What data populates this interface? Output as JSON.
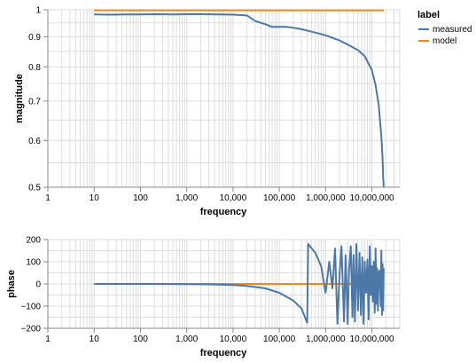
{
  "colors": {
    "measured": "#4c78a8",
    "model": "#f58518",
    "grid": "#dddddd",
    "axis": "#888888"
  },
  "legend": {
    "title": "label",
    "placement": "top-right",
    "entries": [
      "measured",
      "model"
    ]
  },
  "chart_data": [
    {
      "type": "line",
      "xlabel": "frequency",
      "ylabel": "magnitude",
      "xscale": "log",
      "yscale": "log",
      "xlim": [
        1,
        40000000
      ],
      "ylim": [
        0.5,
        1
      ],
      "x_ticks": [
        1,
        10,
        100,
        1000,
        10000,
        100000,
        1000000,
        10000000
      ],
      "x_tick_labels": [
        "1",
        "10",
        "100",
        "1,000",
        "10,000",
        "100,000",
        "1,000,000",
        "10,000,000"
      ],
      "y_ticks": [
        0.5,
        0.6,
        0.7,
        0.8,
        0.9,
        1
      ],
      "y_tick_labels": [
        "0.5",
        "0.6",
        "0.7",
        "0.8",
        "0.9",
        "1"
      ],
      "grid": true,
      "series": [
        {
          "name": "measured",
          "x": [
            10,
            20,
            50,
            100,
            200,
            500,
            1000,
            2000,
            5000,
            10000,
            20000,
            30000,
            50000,
            70000,
            100000,
            150000,
            200000,
            300000,
            500000,
            1000000,
            2000000,
            3000000,
            5000000,
            7000000,
            10000000,
            12000000,
            14000000,
            16000000,
            17000000,
            17500000,
            18000000
          ],
          "y": [
            0.982,
            0.981,
            0.982,
            0.982,
            0.983,
            0.982,
            0.983,
            0.983,
            0.982,
            0.981,
            0.978,
            0.957,
            0.945,
            0.935,
            0.936,
            0.935,
            0.932,
            0.927,
            0.918,
            0.905,
            0.887,
            0.873,
            0.854,
            0.834,
            0.79,
            0.745,
            0.69,
            0.61,
            0.56,
            0.52,
            0.5
          ]
        },
        {
          "name": "model",
          "x": [
            10,
            18000000
          ],
          "y": [
            0.998,
            0.998
          ]
        }
      ]
    },
    {
      "type": "line",
      "xlabel": "frequency",
      "ylabel": "phase",
      "xscale": "log",
      "yscale": "linear",
      "xlim": [
        1,
        40000000
      ],
      "ylim": [
        -200,
        200
      ],
      "x_ticks": [
        1,
        10,
        100,
        1000,
        10000,
        100000,
        1000000,
        10000000
      ],
      "x_tick_labels": [
        "1",
        "10",
        "100",
        "1,000",
        "10,000",
        "100,000",
        "1,000,000",
        "10,000,000"
      ],
      "y_ticks": [
        -200,
        -100,
        0,
        100,
        200
      ],
      "y_tick_labels": [
        "−200",
        "−100",
        "0",
        "100",
        "200"
      ],
      "grid": true,
      "series": [
        {
          "name": "measured",
          "x": [
            10,
            100,
            1000,
            3000,
            10000,
            20000,
            50000,
            100000,
            200000,
            300000,
            400000,
            420000,
            600000,
            800000,
            1000000,
            1200000,
            1400000,
            1600000,
            1800000,
            2000000,
            2200000,
            2500000,
            2700000,
            3000000,
            3200000,
            3500000,
            3800000,
            4000000,
            4300000,
            4600000,
            5000000,
            5400000,
            5800000,
            6200000,
            6600000,
            7000000,
            7500000,
            8000000,
            8500000,
            9000000,
            9500000,
            10000000,
            10500000,
            11000000,
            11500000,
            12000000,
            12500000,
            13000000,
            13500000,
            14000000,
            14500000,
            15000000,
            15500000,
            16000000,
            16500000,
            17000000,
            17500000,
            18000000
          ],
          "y": [
            0,
            0,
            -1,
            -2,
            -5,
            -9,
            -20,
            -40,
            -75,
            -110,
            -175,
            180,
            140,
            80,
            -40,
            100,
            -20,
            160,
            -180,
            40,
            170,
            -170,
            130,
            -180,
            60,
            170,
            -150,
            130,
            -170,
            180,
            -120,
            140,
            -140,
            120,
            -180,
            100,
            -40,
            110,
            -160,
            170,
            -50,
            80,
            -80,
            100,
            -130,
            160,
            -90,
            70,
            -120,
            40,
            60,
            10,
            -100,
            150,
            -140,
            90,
            -120,
            70
          ]
        },
        {
          "name": "model",
          "x": [
            10,
            18000000
          ],
          "y": [
            0,
            0
          ]
        }
      ]
    }
  ]
}
